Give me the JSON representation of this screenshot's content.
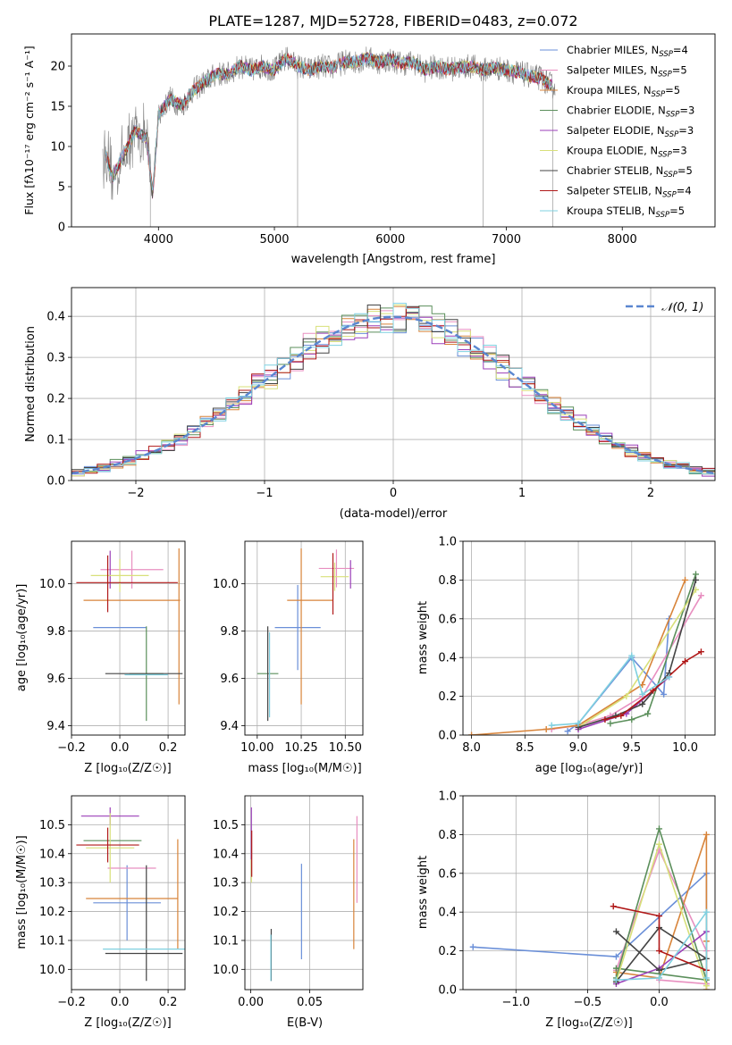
{
  "figure": {
    "title": "PLATE=1287, MJD=52728, FIBERID=0483, z=0.072"
  },
  "chart_data": [
    {
      "id": "spectrum",
      "type": "line",
      "title": "PLATE=1287, MJD=52728, FIBERID=0483, z=0.072",
      "xlabel": "wavelength [Angstrom, rest frame]",
      "ylabel": "Flux [fλ10⁻¹⁷ erg cm⁻² s⁻¹ A⁻¹]",
      "xlim": [
        3250,
        8800
      ],
      "ylim": [
        0,
        24
      ],
      "xticks": [
        4000,
        5000,
        6000,
        7000,
        8000
      ],
      "yticks": [
        0,
        5,
        10,
        15,
        20
      ],
      "grid": false,
      "legend_position": "right",
      "data_color": "#808080",
      "data_x": [
        3550,
        3600,
        3700,
        3800,
        3900,
        3950,
        4000,
        4100,
        4200,
        4300,
        4400,
        4500,
        4600,
        4700,
        4800,
        4900,
        5000,
        5100,
        5200,
        5300,
        5400,
        5500,
        5600,
        5700,
        5800,
        5900,
        6000,
        6100,
        6200,
        6300,
        6400,
        6500,
        6600,
        6700,
        6800,
        6900,
        7000,
        7100,
        7200,
        7300,
        7400
      ],
      "data_y": [
        9,
        6,
        9,
        12,
        11,
        4,
        14,
        16,
        15,
        17,
        18,
        19,
        19,
        20,
        19.5,
        20,
        19.5,
        21,
        20,
        19.5,
        20,
        19.8,
        20.5,
        20.5,
        21,
        20.5,
        20.8,
        20.3,
        20.5,
        19.5,
        20,
        19.6,
        19.8,
        20,
        19.5,
        19.8,
        19.5,
        19.2,
        18.8,
        18.5,
        17.5
      ],
      "model_series": [
        {
          "name": "Chabrier MILES, N_SSP=4",
          "color": "#6a8fd8"
        },
        {
          "name": "Salpeter MILES, N_SSP=5",
          "color": "#e88fc0"
        },
        {
          "name": "Kroupa MILES, N_SSP=5",
          "color": "#d8843a"
        },
        {
          "name": "Chabrier ELODIE, N_SSP=3",
          "color": "#5b8f5b"
        },
        {
          "name": "Salpeter ELODIE, N_SSP=3",
          "color": "#9b3fb8"
        },
        {
          "name": "Kroupa ELODIE, N_SSP=3",
          "color": "#d8e07a"
        },
        {
          "name": "Chabrier STELIB, N_SSP=5",
          "color": "#444444"
        },
        {
          "name": "Salpeter STELIB, N_SSP=4",
          "color": "#b01818"
        },
        {
          "name": "Kroupa STELIB, N_SSP=5",
          "color": "#7fd0e0"
        }
      ],
      "legend": [
        {
          "pre": "Chabrier MILES, N",
          "sub": "SSP",
          "post": "=4",
          "color": "#6a8fd8"
        },
        {
          "pre": "Salpeter MILES, N",
          "sub": "SSP",
          "post": "=5",
          "color": "#e88fc0"
        },
        {
          "pre": "Kroupa MILES, N",
          "sub": "SSP",
          "post": "=5",
          "color": "#d8843a"
        },
        {
          "pre": "Chabrier ELODIE, N",
          "sub": "SSP",
          "post": "=3",
          "color": "#5b8f5b"
        },
        {
          "pre": "Salpeter ELODIE, N",
          "sub": "SSP",
          "post": "=3",
          "color": "#9b3fb8"
        },
        {
          "pre": "Kroupa ELODIE, N",
          "sub": "SSP",
          "post": "=3",
          "color": "#d8e07a"
        },
        {
          "pre": "Chabrier STELIB, N",
          "sub": "SSP",
          "post": "=5",
          "color": "#444444"
        },
        {
          "pre": "Salpeter STELIB, N",
          "sub": "SSP",
          "post": "=4",
          "color": "#b01818"
        },
        {
          "pre": "Kroupa STELIB, N",
          "sub": "SSP",
          "post": "=5",
          "color": "#7fd0e0"
        }
      ]
    },
    {
      "id": "residuals",
      "type": "line",
      "xlabel": "(data-model)/error",
      "ylabel": "Normed distribution",
      "xlim": [
        -2.5,
        2.5
      ],
      "ylim": [
        0,
        0.47
      ],
      "xticks": [
        -2,
        -1,
        0,
        1,
        2
      ],
      "yticks": [
        0.0,
        0.1,
        0.2,
        0.3,
        0.4
      ],
      "grid": true,
      "legend_position": "top-right",
      "legend_label": "𝒩(0, 1)",
      "gaussian_color": "#5a86d0",
      "histogram_bin_width": 0.1,
      "histogram_colors": [
        "#6a8fd8",
        "#e88fc0",
        "#d8843a",
        "#5b8f5b",
        "#9b3fb8",
        "#d8e07a",
        "#444444",
        "#b01818",
        "#7fd0e0"
      ]
    },
    {
      "id": "age-vs-Z",
      "type": "scatter",
      "xlabel": "Z [log₁₀(Z/Z☉)]",
      "ylabel": "age  [log₁₀(age/yr)]",
      "xlim": [
        -0.2,
        0.27
      ],
      "ylim": [
        9.36,
        10.18
      ],
      "xticks": [
        -0.2,
        0.0,
        0.2
      ],
      "yticks": [
        9.4,
        9.6,
        9.8,
        10.0
      ],
      "grid": true,
      "crosses": [
        {
          "x": 0.0,
          "xerr": 0.11,
          "y": 9.815,
          "yerr": 0.0,
          "color": "#6a8fd8"
        },
        {
          "x": 0.05,
          "xerr": 0.13,
          "y": 10.06,
          "yerr": 0.08,
          "color": "#e88fc0"
        },
        {
          "x": 0.05,
          "xerr": 0.2,
          "y": 9.93,
          "yerr": 0.0,
          "color": "#d8843a"
        },
        {
          "x": 0.245,
          "xerr": 0.0,
          "y": 9.82,
          "yerr": 0.33,
          "color": "#d8843a"
        },
        {
          "x": 0.11,
          "xerr": 0.07,
          "y": 9.62,
          "yerr": 0.2,
          "color": "#5b8f5b"
        },
        {
          "x": -0.04,
          "xerr": 0.0,
          "y": 10.06,
          "yerr": 0.08,
          "color": "#9b3fb8"
        },
        {
          "x": 0.0,
          "xerr": 0.12,
          "y": 10.035,
          "yerr": 0.07,
          "color": "#d8e07a"
        },
        {
          "x": 0.1,
          "xerr": 0.16,
          "y": 9.62,
          "yerr": 0.0,
          "color": "#444444"
        },
        {
          "x": -0.05,
          "xerr": 0.0,
          "y": 10.0,
          "yerr": 0.12,
          "color": "#b01818"
        },
        {
          "x": 0.03,
          "xerr": 0.21,
          "y": 10.005,
          "yerr": 0.0,
          "color": "#b01818"
        },
        {
          "x": 0.11,
          "xerr": 0.09,
          "y": 9.615,
          "yerr": 0.0,
          "color": "#7fd0e0"
        }
      ]
    },
    {
      "id": "age-vs-mass",
      "type": "scatter",
      "xlabel": "mass [log₁₀(M/M☉)]",
      "ylabel": "",
      "xlim": [
        9.93,
        10.6
      ],
      "ylim": [
        9.36,
        10.18
      ],
      "xticks": [
        10.0,
        10.25,
        10.5
      ],
      "yticks": [
        9.4,
        9.6,
        9.8,
        10.0
      ],
      "grid": true,
      "crosses": [
        {
          "x": 10.23,
          "xerr": 0.13,
          "y": 9.815,
          "yerr": 0.18,
          "color": "#6a8fd8"
        },
        {
          "x": 10.45,
          "xerr": 0.1,
          "y": 10.065,
          "yerr": 0.08,
          "color": "#e88fc0"
        },
        {
          "x": 10.3,
          "xerr": 0.13,
          "y": 9.93,
          "yerr": 0.0,
          "color": "#d8843a"
        },
        {
          "x": 10.25,
          "xerr": 0.0,
          "y": 9.82,
          "yerr": 0.33,
          "color": "#d8843a"
        },
        {
          "x": 10.06,
          "xerr": 0.06,
          "y": 9.62,
          "yerr": 0.0,
          "color": "#5b8f5b"
        },
        {
          "x": 10.53,
          "xerr": 0.0,
          "y": 10.04,
          "yerr": 0.06,
          "color": "#9b3fb8"
        },
        {
          "x": 10.44,
          "xerr": 0.08,
          "y": 10.03,
          "yerr": 0.06,
          "color": "#d8e07a"
        },
        {
          "x": 10.06,
          "xerr": 0.0,
          "y": 9.62,
          "yerr": 0.2,
          "color": "#444444"
        },
        {
          "x": 10.43,
          "xerr": 0.0,
          "y": 10.0,
          "yerr": 0.13,
          "color": "#b01818"
        },
        {
          "x": 10.07,
          "xerr": 0.0,
          "y": 9.615,
          "yerr": 0.18,
          "color": "#7fd0e0"
        }
      ]
    },
    {
      "id": "weight-vs-age",
      "type": "line",
      "xlabel": "age  [log₁₀(age/yr)]",
      "ylabel": "mass weight",
      "xlim": [
        7.92,
        10.28
      ],
      "ylim": [
        0,
        1
      ],
      "xticks": [
        8.0,
        8.5,
        9.0,
        9.5,
        10.0
      ],
      "yticks": [
        0.0,
        0.2,
        0.4,
        0.6,
        0.8,
        1.0
      ],
      "grid": true,
      "series": [
        {
          "color": "#6a8fd8",
          "x": [
            8.9,
            9.0,
            9.5,
            9.8,
            9.85
          ],
          "y": [
            0.02,
            0.06,
            0.4,
            0.21,
            0.6
          ]
        },
        {
          "color": "#e88fc0",
          "x": [
            8.75,
            9.0,
            9.3,
            9.6,
            10.15
          ],
          "y": [
            0.03,
            0.05,
            0.1,
            0.2,
            0.72
          ]
        },
        {
          "color": "#d8843a",
          "x": [
            8.0,
            8.7,
            9.0,
            9.6,
            10.0
          ],
          "y": [
            0.0,
            0.03,
            0.05,
            0.26,
            0.8
          ]
        },
        {
          "color": "#5b8f5b",
          "x": [
            9.3,
            9.5,
            9.65,
            10.1
          ],
          "y": [
            0.06,
            0.08,
            0.11,
            0.83
          ]
        },
        {
          "color": "#9b3fb8",
          "x": [
            9.0,
            9.45,
            9.85
          ],
          "y": [
            0.03,
            0.11,
            0.3
          ]
        },
        {
          "color": "#d8e07a",
          "x": [
            9.0,
            9.45,
            10.1
          ],
          "y": [
            0.04,
            0.2,
            0.75
          ]
        },
        {
          "color": "#444444",
          "x": [
            9.0,
            9.35,
            9.6,
            9.85,
            10.1
          ],
          "y": [
            0.04,
            0.1,
            0.16,
            0.32,
            0.8
          ]
        },
        {
          "color": "#b01818",
          "x": [
            9.25,
            9.4,
            9.7,
            10.0,
            10.15
          ],
          "y": [
            0.08,
            0.1,
            0.23,
            0.38,
            0.43
          ]
        },
        {
          "color": "#7fd0e0",
          "x": [
            8.75,
            9.0,
            9.5,
            9.6,
            9.85
          ],
          "y": [
            0.05,
            0.06,
            0.41,
            0.21,
            0.3
          ]
        }
      ]
    },
    {
      "id": "mass-vs-Z",
      "type": "scatter",
      "xlabel": "Z [log₁₀(Z/Z☉)]",
      "ylabel": "mass [log₁₀(M/M☉)]",
      "xlim": [
        -0.2,
        0.27
      ],
      "ylim": [
        9.93,
        10.6
      ],
      "xticks": [
        -0.2,
        0.0,
        0.2
      ],
      "yticks": [
        10.0,
        10.1,
        10.2,
        10.3,
        10.4,
        10.5
      ],
      "grid": true,
      "crosses": [
        {
          "x": 0.03,
          "xerr": 0.14,
          "y": 10.23,
          "yerr": 0.13,
          "color": "#6a8fd8"
        },
        {
          "x": 0.05,
          "xerr": 0.1,
          "y": 10.35,
          "yerr": 0.0,
          "color": "#e88fc0"
        },
        {
          "x": 0.05,
          "xerr": 0.19,
          "y": 10.245,
          "yerr": 0.0,
          "color": "#d8843a"
        },
        {
          "x": 0.24,
          "xerr": 0.0,
          "y": 10.26,
          "yerr": 0.19,
          "color": "#d8843a"
        },
        {
          "x": -0.03,
          "xerr": 0.12,
          "y": 10.445,
          "yerr": 0.0,
          "color": "#5b8f5b"
        },
        {
          "x": -0.04,
          "xerr": 0.12,
          "y": 10.53,
          "yerr": 0.03,
          "color": "#9b3fb8"
        },
        {
          "x": -0.04,
          "xerr": 0.1,
          "y": 10.42,
          "yerr": 0.12,
          "color": "#d8e07a"
        },
        {
          "x": 0.1,
          "xerr": 0.16,
          "y": 10.055,
          "yerr": 0.0,
          "color": "#444444"
        },
        {
          "x": -0.05,
          "xerr": 0.13,
          "y": 10.43,
          "yerr": 0.06,
          "color": "#b01818"
        },
        {
          "x": 0.11,
          "xerr": 0.0,
          "y": 10.16,
          "yerr": 0.2,
          "color": "#444444"
        },
        {
          "x": 0.1,
          "xerr": 0.17,
          "y": 10.07,
          "yerr": 0.0,
          "color": "#7fd0e0"
        }
      ]
    },
    {
      "id": "mass-vs-EBV",
      "type": "scatter",
      "xlabel": "E(B-V)",
      "ylabel": "",
      "xlim": [
        -0.005,
        0.095
      ],
      "ylim": [
        9.93,
        10.6
      ],
      "xticks": [
        0.0,
        0.05
      ],
      "yticks": [
        10.0,
        10.1,
        10.2,
        10.3,
        10.4,
        10.5
      ],
      "grid": true,
      "crosses": [
        {
          "x": 0.043,
          "xerr": 0.0,
          "y": 10.2,
          "yerr": 0.165,
          "color": "#6a8fd8"
        },
        {
          "x": 0.09,
          "xerr": 0.0,
          "y": 10.38,
          "yerr": 0.15,
          "color": "#e88fc0"
        },
        {
          "x": 0.0873,
          "xerr": 0.0,
          "y": 10.26,
          "yerr": 0.19,
          "color": "#d8843a"
        },
        {
          "x": 0.0005,
          "xerr": 0.0,
          "y": 10.47,
          "yerr": 0.09,
          "color": "#9b3fb8"
        },
        {
          "x": 0.0005,
          "xerr": 0.0,
          "y": 10.34,
          "yerr": 0.04,
          "color": "#d8e07a"
        },
        {
          "x": 0.0173,
          "xerr": 0.0,
          "y": 10.05,
          "yerr": 0.09,
          "color": "#444444"
        },
        {
          "x": 0.0008,
          "xerr": 0.0,
          "y": 10.4,
          "yerr": 0.08,
          "color": "#b01818"
        },
        {
          "x": 0.017,
          "xerr": 0.0,
          "y": 10.04,
          "yerr": 0.08,
          "color": "#7fd0e0"
        }
      ]
    },
    {
      "id": "weight-vs-Z",
      "type": "line",
      "xlabel": "Z [log₁₀(Z/Z☉)]",
      "ylabel": "mass weight",
      "xlim": [
        -1.37,
        0.39
      ],
      "ylim": [
        0,
        1
      ],
      "xticks": [
        -1.0,
        -0.5,
        0.0
      ],
      "yticks": [
        0.0,
        0.2,
        0.4,
        0.6,
        0.8,
        1.0
      ],
      "grid": true,
      "series": [
        {
          "color": "#6a8fd8",
          "x": [
            -1.3,
            -0.3,
            0.33,
            0.33
          ],
          "y": [
            0.22,
            0.17,
            0.6,
            0.03
          ]
        },
        {
          "color": "#e88fc0",
          "x": [
            -0.3,
            0.0,
            0.33,
            0.33,
            0.0
          ],
          "y": [
            0.1,
            0.72,
            0.2,
            0.03,
            0.05
          ]
        },
        {
          "color": "#d8843a",
          "x": [
            -0.3,
            0.0,
            0.33,
            0.33,
            0.33
          ],
          "y": [
            0.09,
            0.06,
            0.8,
            0.25,
            0.0
          ]
        },
        {
          "color": "#5b8f5b",
          "x": [
            -0.3,
            0.0,
            0.33,
            -0.3
          ],
          "y": [
            0.06,
            0.83,
            0.05,
            0.11
          ]
        },
        {
          "color": "#9b3fb8",
          "x": [
            -0.3,
            0.0,
            0.33
          ],
          "y": [
            0.03,
            0.11,
            0.3
          ]
        },
        {
          "color": "#d8e07a",
          "x": [
            -0.3,
            0.0,
            0.33
          ],
          "y": [
            0.04,
            0.75,
            0.02
          ]
        },
        {
          "color": "#444444",
          "x": [
            -0.3,
            0.0,
            0.33,
            0.0,
            -0.3
          ],
          "y": [
            0.3,
            0.1,
            0.16,
            0.32,
            0.04
          ]
        },
        {
          "color": "#b01818",
          "x": [
            -0.32,
            0.0,
            0.0,
            0.33
          ],
          "y": [
            0.43,
            0.38,
            0.2,
            0.1
          ]
        },
        {
          "color": "#7fd0e0",
          "x": [
            -0.3,
            0.0,
            0.33,
            0.33
          ],
          "y": [
            0.05,
            0.06,
            0.4,
            0.06
          ]
        }
      ]
    }
  ]
}
